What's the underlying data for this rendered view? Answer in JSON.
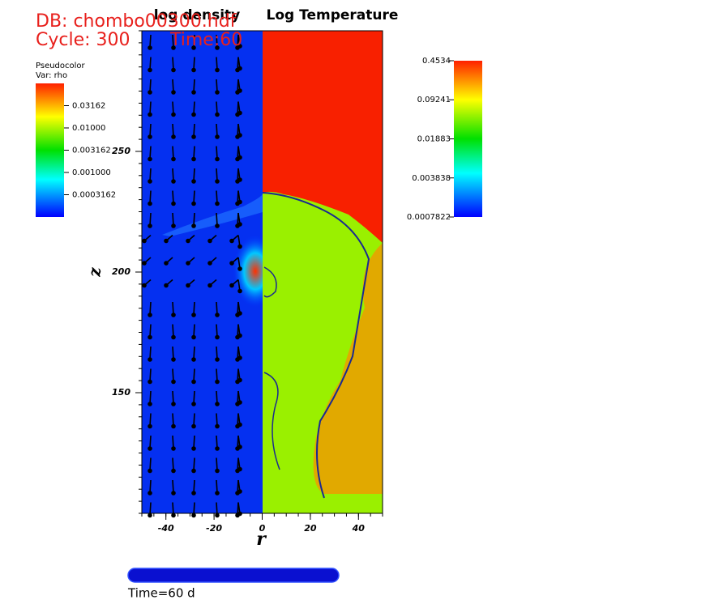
{
  "chart_data": {
    "type": "field",
    "db_label": "DB: chombo00300.hdf",
    "cycle_label": "Cycle: 300",
    "time_label": "Time:60",
    "left_title": "log density",
    "right_title": "Log Temperature",
    "xlabel": "r",
    "ylabel": "z",
    "xlim": [
      -50,
      50
    ],
    "xticks": [
      -40,
      -20,
      0,
      20,
      40
    ],
    "ylim": [
      100,
      300
    ],
    "yticks": [
      150,
      200,
      250
    ],
    "legend_left": {
      "title": "Pseudocolor",
      "var": "Var: rho",
      "log": true,
      "lim": [
        0.0001,
        0.1
      ],
      "ticks": [
        0.03162,
        {
          "value": 0.01,
          "label": "0.01000"
        },
        0.003162,
        {
          "value": 0.001,
          "label": "0.001000"
        },
        0.0003162
      ]
    },
    "legend_right": {
      "log": true,
      "lim": [
        0.0007822,
        0.4534
      ],
      "ticks": [
        0.4534,
        0.09241,
        0.01883,
        0.003838,
        0.0007822
      ]
    },
    "slider_label": "Time=60 d"
  }
}
